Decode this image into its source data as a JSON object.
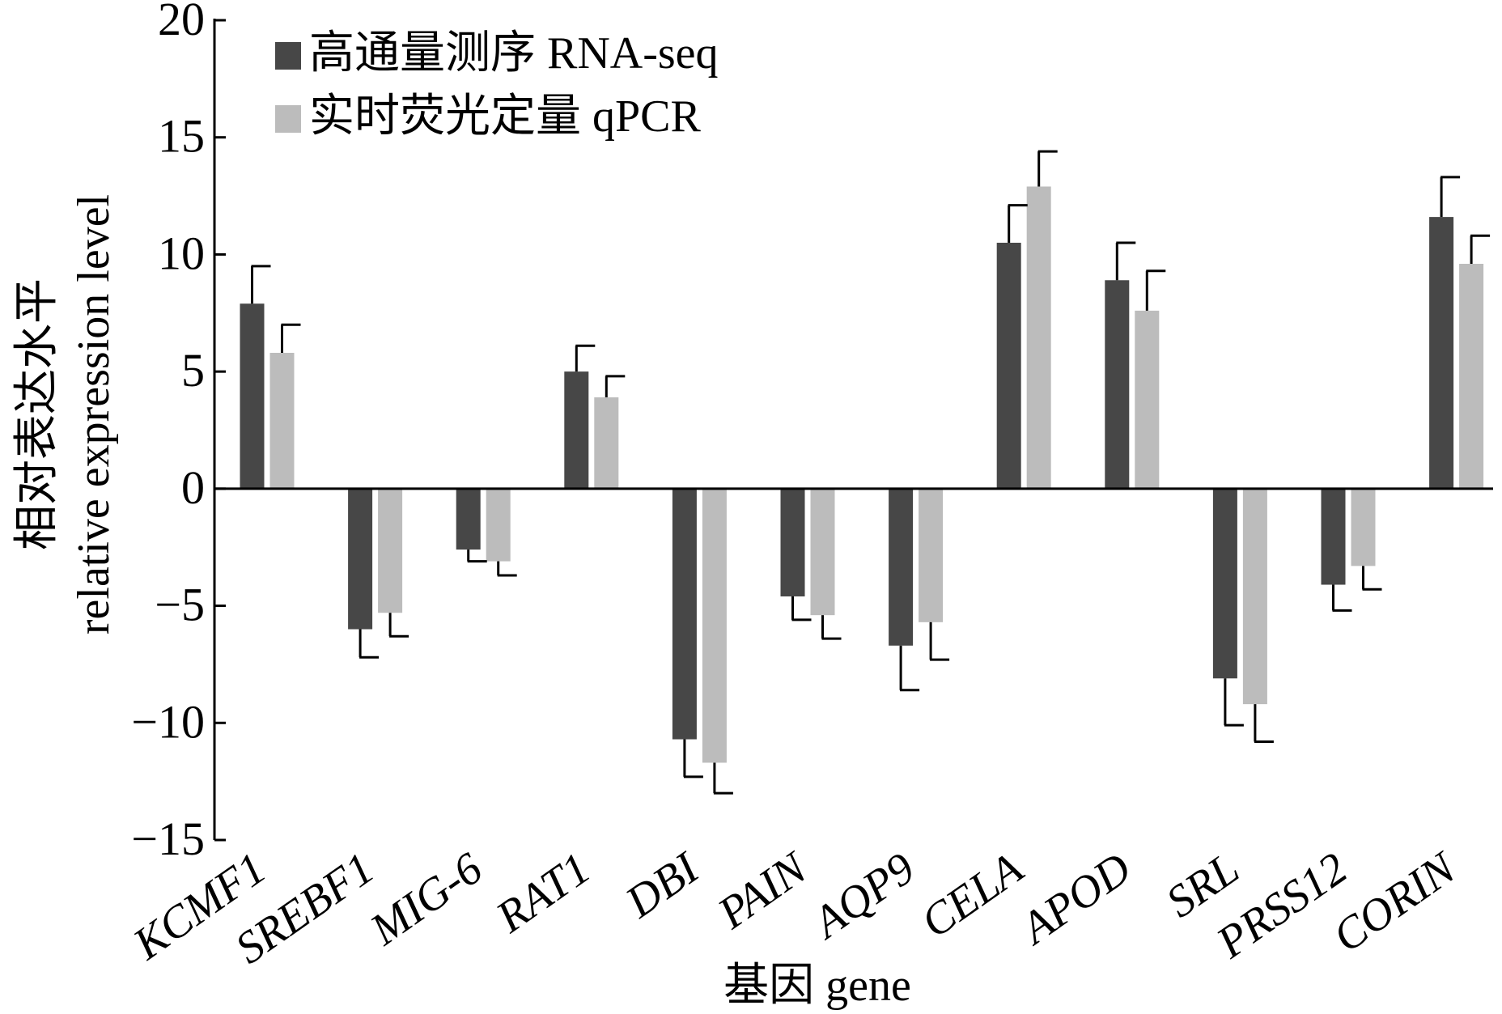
{
  "chart_data": {
    "type": "bar",
    "title": "",
    "xlabel": "基因 gene",
    "ylabel": [
      "相对表达水平",
      "relative expression level"
    ],
    "ylim": [
      -15,
      20
    ],
    "yticks": [
      -15,
      -10,
      -5,
      0,
      5,
      10,
      15,
      20
    ],
    "ytick_labels": [
      "−15",
      "−10",
      "−5",
      "0",
      "5",
      "10",
      "15",
      "20"
    ],
    "grid": false,
    "legend_position": "top-left",
    "categories": [
      "KCMF1",
      "SREBF1",
      "MIG-6",
      "RAT1",
      "DBI",
      "PAIN",
      "AQP9",
      "CELA",
      "APOD",
      "SRL",
      "PRSS12",
      "CORIN"
    ],
    "series": [
      {
        "name": "高通量测序 RNA-seq",
        "color": "#474747",
        "values": [
          7.9,
          -6.0,
          -2.6,
          5.0,
          -10.7,
          -4.6,
          -6.7,
          10.5,
          8.9,
          -8.1,
          -4.1,
          11.6
        ],
        "errors": [
          1.6,
          1.2,
          0.5,
          1.1,
          1.6,
          1.0,
          1.9,
          1.6,
          1.6,
          2.0,
          1.1,
          1.7
        ]
      },
      {
        "name": "实时荧光定量 qPCR",
        "color": "#bcbcbc",
        "values": [
          5.8,
          -5.3,
          -3.1,
          3.9,
          -11.7,
          -5.4,
          -5.7,
          12.9,
          7.6,
          -9.2,
          -3.3,
          9.6
        ],
        "errors": [
          1.2,
          1.0,
          0.6,
          0.9,
          1.3,
          1.0,
          1.6,
          1.5,
          1.7,
          1.6,
          1.0,
          1.2
        ]
      }
    ]
  }
}
